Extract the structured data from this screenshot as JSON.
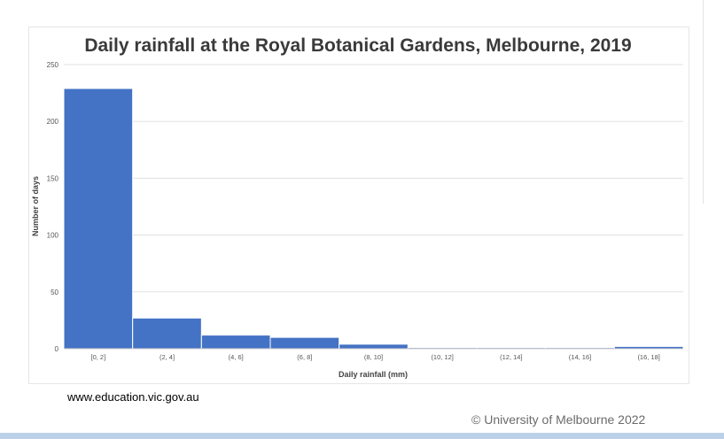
{
  "chart_data": {
    "type": "bar",
    "title": "Daily rainfall at the Royal Botanical Gardens, Melbourne, 2019",
    "xlabel": "Daily rainfall (mm)",
    "ylabel": "Number of days",
    "categories": [
      "[0, 2]",
      "(2, 4]",
      "(4, 6]",
      "(6, 8]",
      "(8, 10]",
      "(10, 12]",
      "(12, 14]",
      "(14, 16]",
      "(16, 18]"
    ],
    "values": [
      229,
      27,
      12,
      10,
      4,
      1,
      1,
      1,
      2
    ],
    "ylim": [
      0,
      250
    ],
    "yticks": [
      "0",
      "50",
      "100",
      "150",
      "200",
      "250"
    ],
    "grid": true,
    "bar_color": "#4472c4",
    "grid_color": "#e0e0e0"
  },
  "source": "www.education.vic.gov.au",
  "copyright": "© University of Melbourne 2022"
}
